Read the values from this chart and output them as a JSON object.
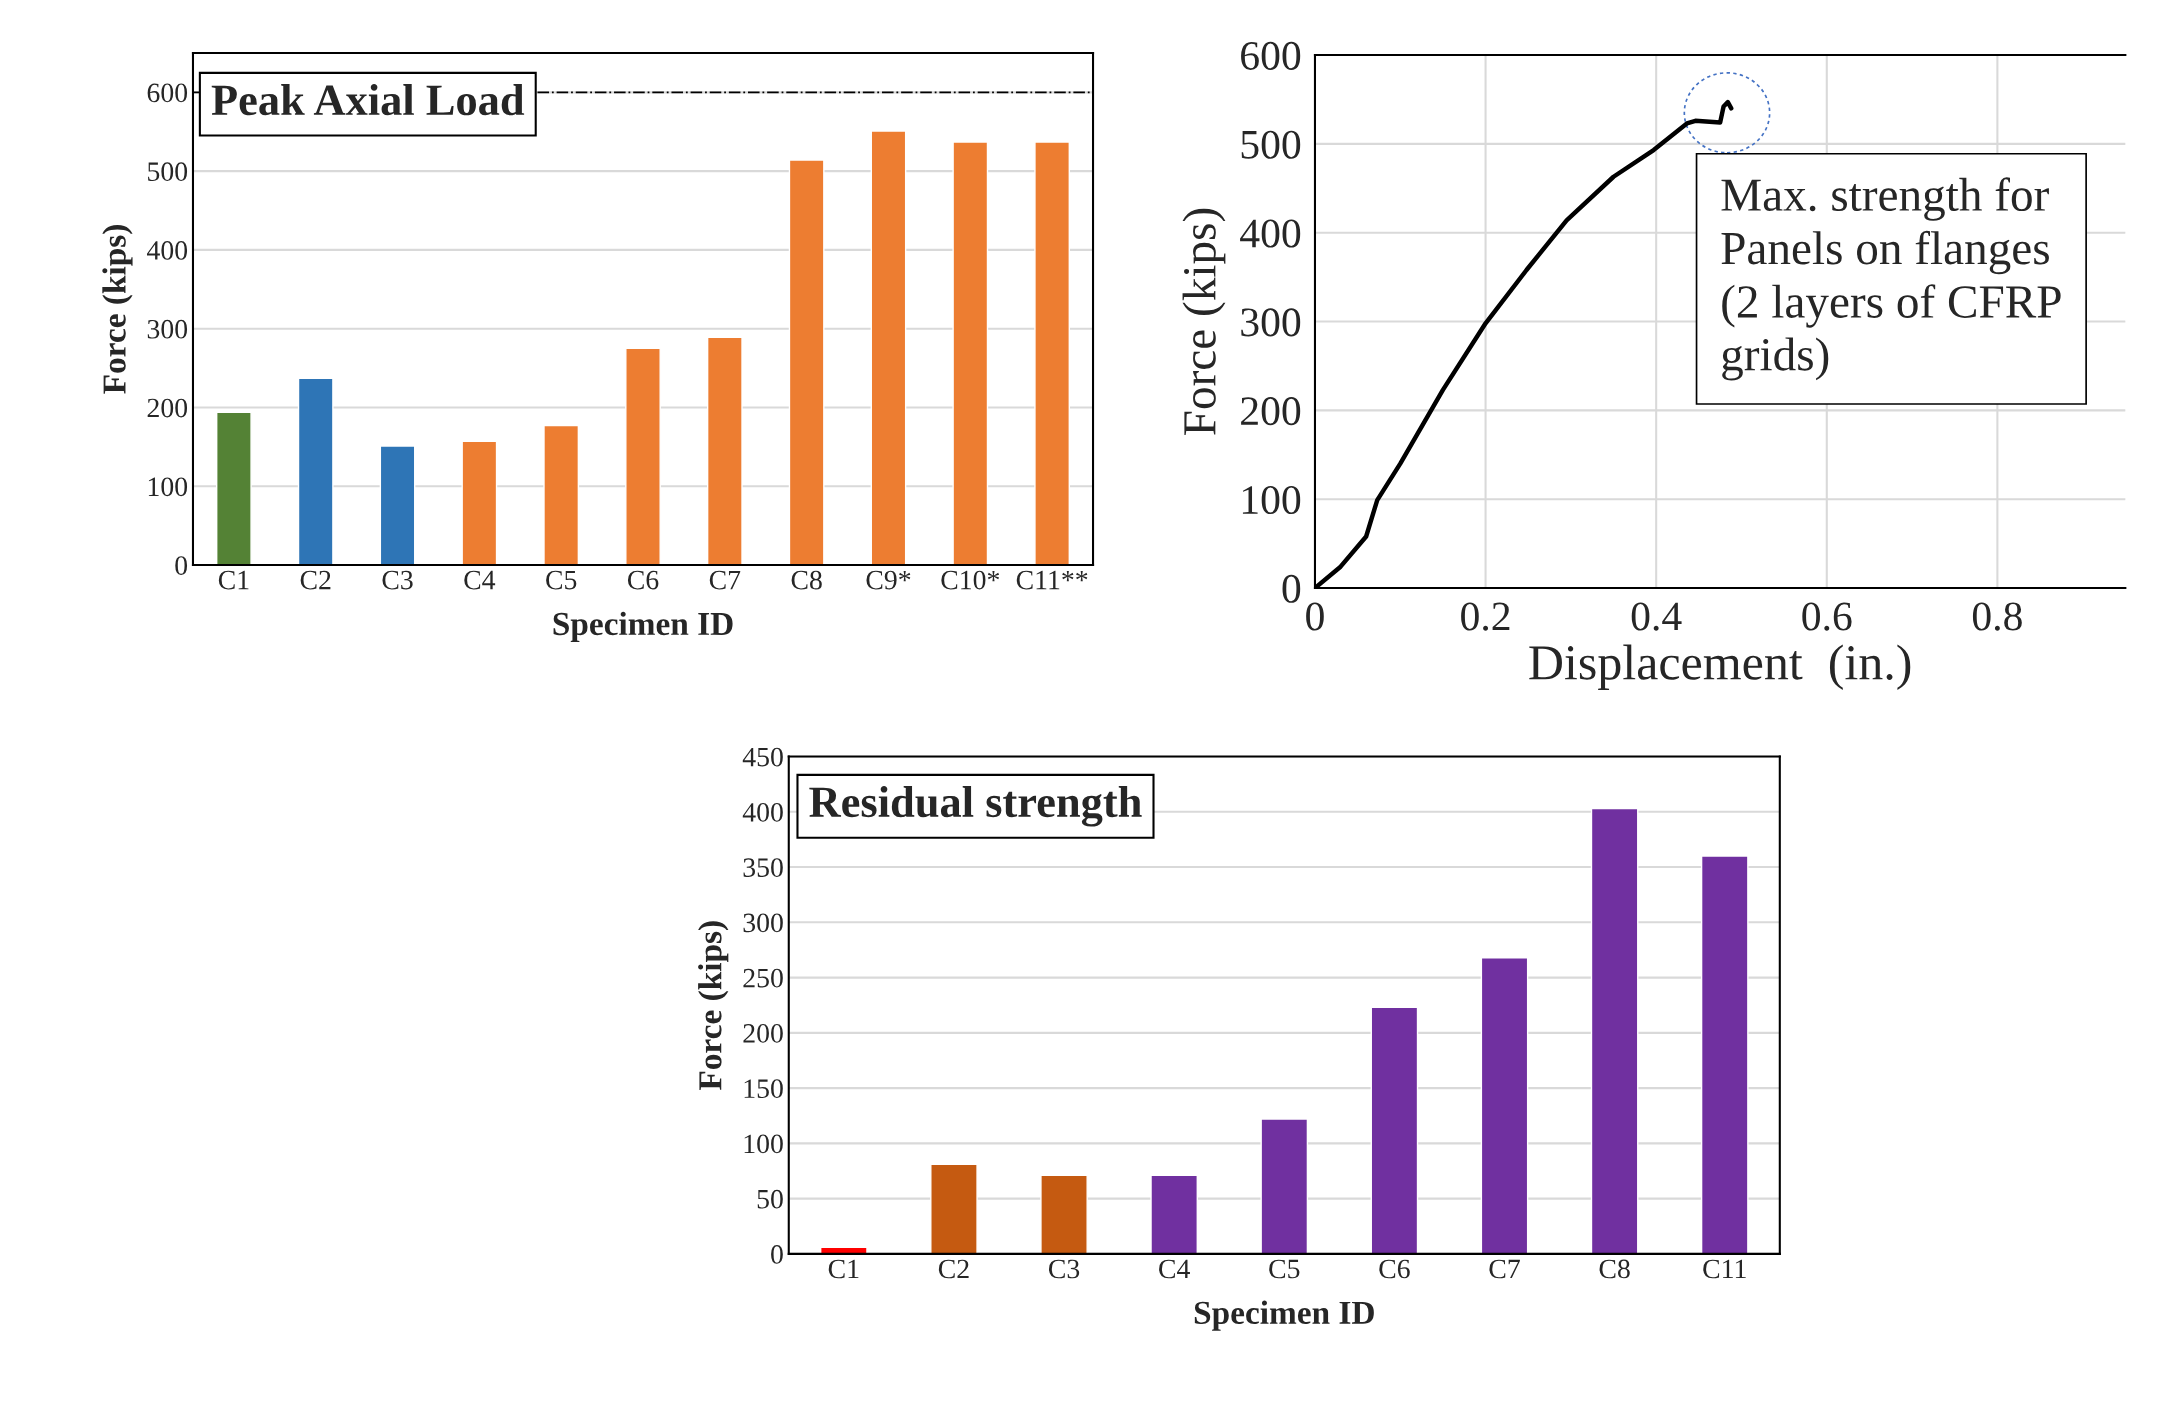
{
  "chart_data": [
    {
      "type": "bar",
      "title": "Peak Axial Load",
      "xlabel": "Specimen ID",
      "ylabel": "Force (kips)",
      "categories": [
        "C1",
        "C2",
        "C3",
        "C4",
        "C5",
        "C6",
        "C7",
        "C8",
        "C9*",
        "C10*",
        "C11**"
      ],
      "values": [
        194,
        237,
        151,
        157,
        177,
        275,
        289,
        514,
        551,
        537,
        537
      ],
      "colors": [
        "#548235",
        "#2e75b6",
        "#2e75b6",
        "#ed7d31",
        "#ed7d31",
        "#ed7d31",
        "#ed7d31",
        "#ed7d31",
        "#ed7d31",
        "#ed7d31",
        "#ed7d31"
      ],
      "ylim": [
        0,
        650
      ],
      "yticks": [
        0,
        100,
        200,
        300,
        400,
        500,
        600
      ],
      "grid": "y",
      "ref_lines": [
        {
          "axis": "y",
          "value": 600,
          "color": "#000000",
          "line_style": "dashdot"
        }
      ]
    },
    {
      "type": "line",
      "xlabel": "Displacement  (in.)",
      "ylabel": "Force (kips)",
      "series": [
        {
          "color": "#000000",
          "x": [
            0,
            0.03,
            0.06,
            0.073,
            0.1,
            0.15,
            0.2,
            0.248,
            0.295,
            0.35,
            0.397,
            0.436,
            0.446,
            0.475,
            0.479,
            0.484,
            0.488
          ],
          "values": [
            0,
            24,
            58,
            99,
            140,
            223,
            298,
            358,
            414,
            463,
            493,
            523,
            526,
            524,
            542,
            547,
            540
          ]
        }
      ],
      "xlim": [
        0,
        0.95
      ],
      "xticks": [
        0,
        0.2,
        0.4,
        0.6,
        0.8
      ],
      "ylim": [
        0,
        600
      ],
      "yticks": [
        0,
        100,
        200,
        300,
        400,
        500,
        600
      ],
      "grid": true,
      "annotations": [
        "Max. strength for\nPanels on flanges\n(2 layers of CFRP\ngrids)"
      ]
    },
    {
      "type": "bar",
      "title": "Residual strength",
      "xlabel": "Specimen ID",
      "ylabel": "Force (kips)",
      "categories": [
        "C1",
        "C2",
        "C3",
        "C4",
        "C5",
        "C6",
        "C7",
        "C8",
        "C11"
      ],
      "values": [
        6,
        81,
        71,
        71,
        122,
        223,
        268,
        403,
        360
      ],
      "colors": [
        "#ff0000",
        "#c55a11",
        "#c55a11",
        "#7030a0",
        "#7030a0",
        "#7030a0",
        "#7030a0",
        "#7030a0",
        "#7030a0"
      ],
      "ylim": [
        0,
        450
      ],
      "yticks": [
        0,
        50,
        100,
        150,
        200,
        250,
        300,
        350,
        400,
        450
      ],
      "grid": "y"
    }
  ]
}
